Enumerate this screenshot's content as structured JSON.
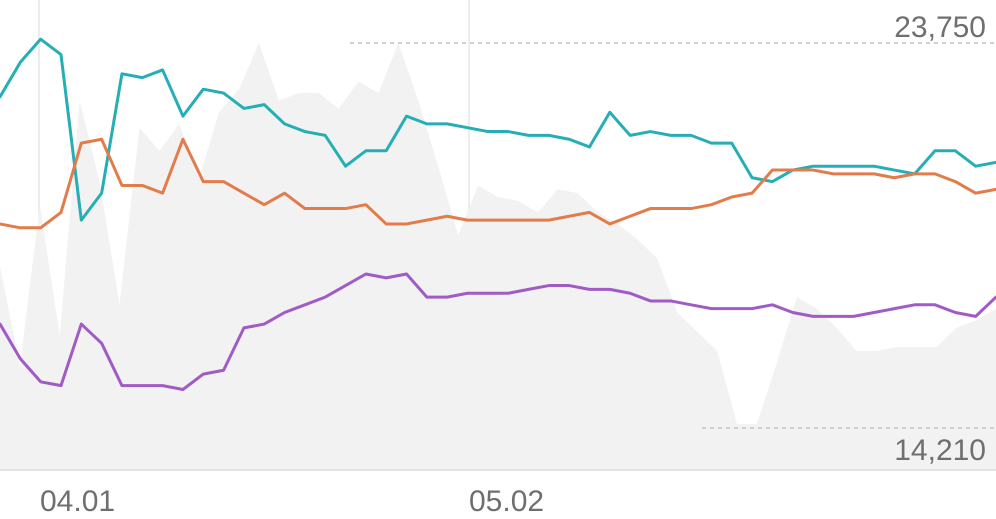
{
  "chart_data": {
    "type": "line",
    "x_ticks": [
      "04.01",
      "05.02"
    ],
    "y_labels": {
      "max": "23,750",
      "min": "14,210"
    },
    "area_series": {
      "color": "#f2f2f2",
      "values": [
        0.42,
        0.16,
        0.58,
        0.24,
        0.85,
        0.64,
        0.32,
        0.78,
        0.72,
        0.79,
        0.65,
        0.82,
        0.88,
        1.0,
        0.85,
        0.87,
        0.87,
        0.83,
        0.9,
        0.87,
        1.0,
        0.85,
        0.68,
        0.5,
        0.63,
        0.6,
        0.59,
        0.56,
        0.62,
        0.61,
        0.56,
        0.53,
        0.49,
        0.44,
        0.3,
        0.25,
        0.2,
        0.01,
        0.01,
        0.17,
        0.34,
        0.31,
        0.26,
        0.2,
        0.2,
        0.21,
        0.21,
        0.21,
        0.26,
        0.28,
        0.31
      ]
    },
    "series": [
      {
        "color": "#26aeb6",
        "values": [
          0.86,
          0.95,
          1.01,
          0.97,
          0.54,
          0.61,
          0.92,
          0.91,
          0.93,
          0.81,
          0.88,
          0.87,
          0.83,
          0.84,
          0.79,
          0.77,
          0.76,
          0.68,
          0.72,
          0.72,
          0.81,
          0.79,
          0.79,
          0.78,
          0.77,
          0.77,
          0.76,
          0.76,
          0.75,
          0.73,
          0.82,
          0.76,
          0.77,
          0.76,
          0.76,
          0.74,
          0.74,
          0.65,
          0.64,
          0.67,
          0.68,
          0.68,
          0.68,
          0.68,
          0.67,
          0.66,
          0.72,
          0.72,
          0.68,
          0.69
        ]
      },
      {
        "color": "#e27c4b",
        "values": [
          0.53,
          0.52,
          0.52,
          0.56,
          0.74,
          0.75,
          0.63,
          0.63,
          0.61,
          0.75,
          0.64,
          0.64,
          0.61,
          0.58,
          0.61,
          0.57,
          0.57,
          0.57,
          0.58,
          0.53,
          0.53,
          0.54,
          0.55,
          0.54,
          0.54,
          0.54,
          0.54,
          0.54,
          0.55,
          0.56,
          0.53,
          0.55,
          0.57,
          0.57,
          0.57,
          0.58,
          0.6,
          0.61,
          0.67,
          0.67,
          0.67,
          0.66,
          0.66,
          0.66,
          0.65,
          0.66,
          0.66,
          0.64,
          0.61,
          0.62
        ]
      },
      {
        "color": "#a05bc4",
        "values": [
          0.27,
          0.18,
          0.12,
          0.11,
          0.27,
          0.22,
          0.11,
          0.11,
          0.11,
          0.1,
          0.14,
          0.15,
          0.26,
          0.27,
          0.3,
          0.32,
          0.34,
          0.37,
          0.4,
          0.39,
          0.4,
          0.34,
          0.34,
          0.35,
          0.35,
          0.35,
          0.36,
          0.37,
          0.37,
          0.36,
          0.36,
          0.35,
          0.33,
          0.33,
          0.32,
          0.31,
          0.31,
          0.31,
          0.32,
          0.3,
          0.29,
          0.29,
          0.29,
          0.3,
          0.31,
          0.32,
          0.32,
          0.3,
          0.29,
          0.34
        ]
      }
    ]
  }
}
